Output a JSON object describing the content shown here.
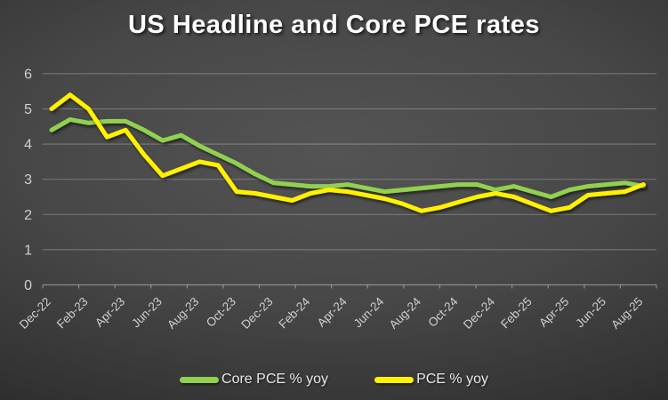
{
  "chart_data": {
    "type": "line",
    "title": "US Headline and Core PCE rates",
    "xlabel": "",
    "ylabel": "",
    "ylim": [
      0,
      6
    ],
    "y_ticks": [
      0,
      1,
      2,
      3,
      4,
      5,
      6
    ],
    "x_label_step": 2,
    "grid": "horizontal",
    "legend_position": "bottom",
    "background": "dark-gray-gradient",
    "x": [
      "Dec-22",
      "Jan-23",
      "Feb-23",
      "Mar-23",
      "Apr-23",
      "May-23",
      "Jun-23",
      "Jul-23",
      "Aug-23",
      "Sep-23",
      "Oct-23",
      "Nov-23",
      "Dec-23",
      "Jan-24",
      "Feb-24",
      "Mar-24",
      "Apr-24",
      "May-24",
      "Jun-24",
      "Jul-24",
      "Aug-24",
      "Sep-24",
      "Oct-24",
      "Nov-24",
      "Dec-24",
      "Jan-25",
      "Feb-25",
      "Mar-25",
      "Apr-25",
      "May-25",
      "Jun-25",
      "Jul-25",
      "Aug-25"
    ],
    "x_tick_labels": [
      "Dec-22",
      "Feb-23",
      "Apr-23",
      "Jun-23",
      "Aug-23",
      "Oct-23",
      "Dec-23",
      "Feb-24",
      "Apr-24",
      "Jun-24",
      "Aug-24",
      "Oct-24",
      "Dec-24",
      "Feb-25",
      "Apr-25",
      "Jun-25",
      "Aug-25"
    ],
    "series": [
      {
        "name": "Core PCE % yoy",
        "color": "#92d050",
        "values": [
          4.4,
          4.7,
          4.6,
          4.65,
          4.65,
          4.4,
          4.1,
          4.25,
          3.95,
          3.7,
          3.45,
          3.15,
          2.9,
          2.85,
          2.8,
          2.8,
          2.85,
          2.75,
          2.65,
          2.7,
          2.75,
          2.8,
          2.85,
          2.85,
          2.7,
          2.8,
          2.65,
          2.5,
          2.7,
          2.8,
          2.85,
          2.9,
          2.8
        ]
      },
      {
        "name": "PCE % yoy",
        "color": "#fff101",
        "values": [
          5.0,
          5.4,
          5.0,
          4.2,
          4.4,
          3.7,
          3.1,
          3.3,
          3.5,
          3.4,
          2.65,
          2.6,
          2.5,
          2.4,
          2.6,
          2.7,
          2.65,
          2.55,
          2.45,
          2.3,
          2.1,
          2.2,
          2.35,
          2.5,
          2.6,
          2.5,
          2.3,
          2.1,
          2.2,
          2.55,
          2.6,
          2.65,
          2.85
        ]
      }
    ],
    "styles": {
      "grid_color": "rgba(255,255,255,0.24)",
      "axis_color": "rgba(255,255,255,0.38)",
      "tick_label_color": "#cfcfcf",
      "line_width": 5
    }
  }
}
